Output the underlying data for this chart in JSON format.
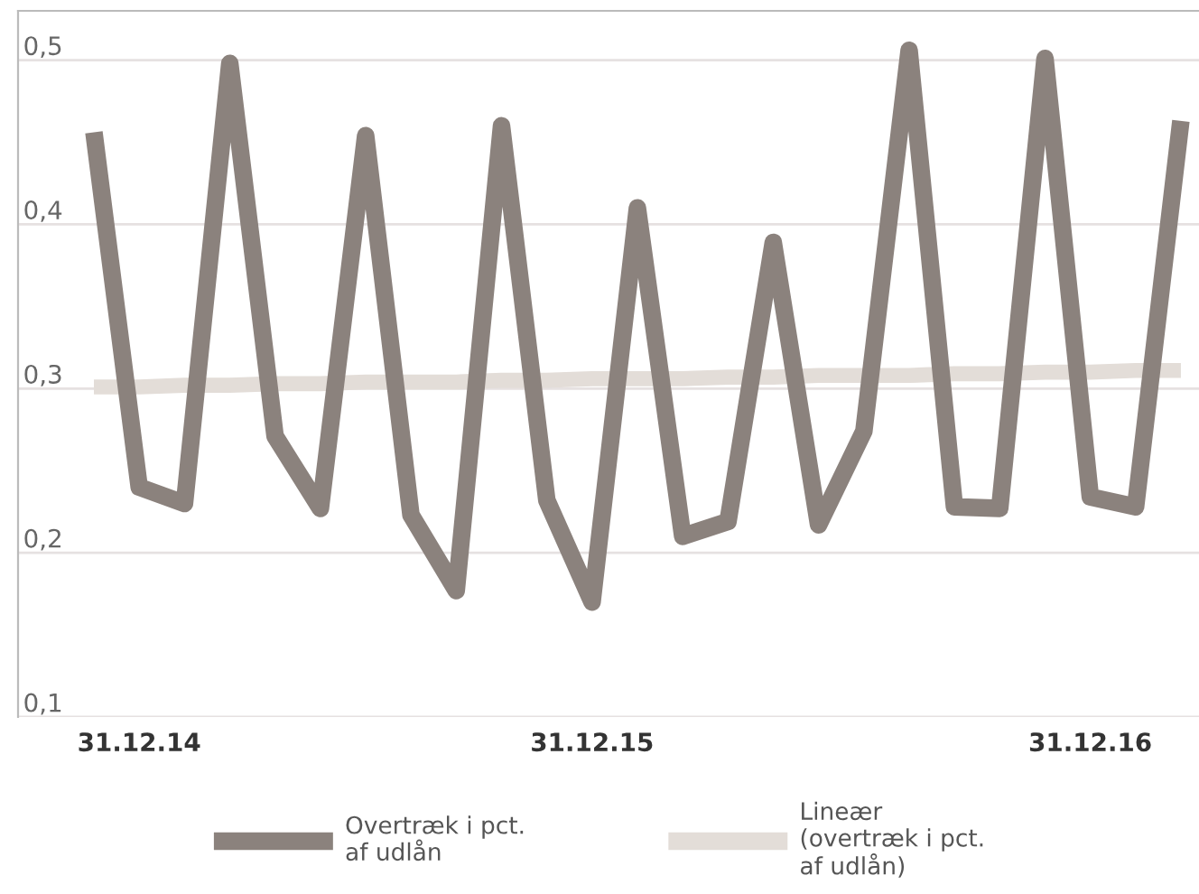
{
  "chart_data": {
    "type": "line",
    "categories": [
      null,
      "31.12.14",
      null,
      null,
      null,
      null,
      null,
      null,
      null,
      null,
      null,
      "31.12.15",
      null,
      null,
      null,
      null,
      null,
      null,
      null,
      null,
      null,
      null,
      "31.12.16",
      null,
      null
    ],
    "series": [
      {
        "name": "Overtræk i pct.\naf udlån",
        "color": "#8b827d",
        "values": [
          0.456,
          0.24,
          0.23,
          0.498,
          0.271,
          0.227,
          0.454,
          0.223,
          0.177,
          0.46,
          0.232,
          0.17,
          0.41,
          0.21,
          0.219,
          0.389,
          0.217,
          0.274,
          0.506,
          0.228,
          0.227,
          0.501,
          0.234,
          0.228,
          0.463
        ]
      },
      {
        "name": "Lineær\n(overtræk i pct.\naf udlån)",
        "color": "#e3ddd8",
        "values": [
          0.301,
          0.301,
          0.302,
          0.302,
          0.303,
          0.303,
          0.304,
          0.304,
          0.304,
          0.305,
          0.305,
          0.306,
          0.306,
          0.306,
          0.307,
          0.307,
          0.308,
          0.308,
          0.308,
          0.309,
          0.309,
          0.31,
          0.31,
          0.311,
          0.311
        ]
      }
    ],
    "ylim": [
      0.1,
      0.53
    ],
    "yticks": [
      {
        "value": 0.1,
        "label": "0,1"
      },
      {
        "value": 0.2,
        "label": "0,2"
      },
      {
        "value": 0.3,
        "label": "0,3"
      },
      {
        "value": 0.4,
        "label": "0,4"
      },
      {
        "value": 0.5,
        "label": "0,5"
      }
    ],
    "grid": "y",
    "legend": "bottom",
    "marker": "none",
    "line_style": "solid"
  }
}
